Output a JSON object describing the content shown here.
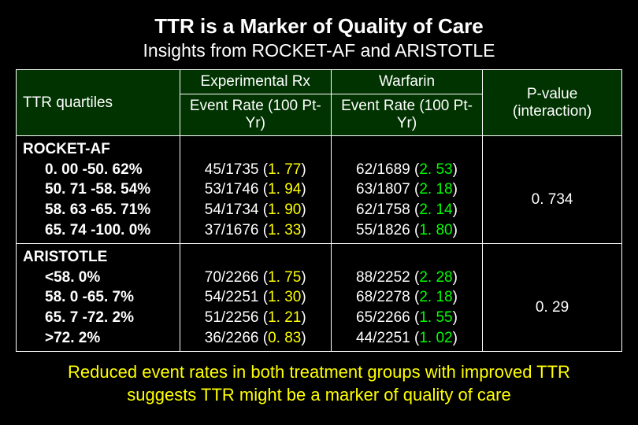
{
  "title": "TTR is a Marker of Quality of Care",
  "subtitle": "Insights from ROCKET-AF and ARISTOTLE",
  "headers": {
    "rowhead": "TTR quartiles",
    "col1_top": "Experimental Rx",
    "col2_top": "Warfarin",
    "sub": "Event Rate (100 Pt-Yr)",
    "pval": "P-value (interaction)"
  },
  "groups": [
    {
      "study": "ROCKET-AF",
      "pvalue": "0. 734",
      "quartiles": [
        "0. 00 -50. 62%",
        "50. 71 -58. 54%",
        "58. 63 -65. 71%",
        "65. 74 -100. 0%"
      ],
      "exp": [
        {
          "n": "45/1735",
          "r": "1. 77"
        },
        {
          "n": "53/1746",
          "r": "1. 94"
        },
        {
          "n": "54/1734",
          "r": "1. 90"
        },
        {
          "n": "37/1676",
          "r": "1. 33"
        }
      ],
      "warf": [
        {
          "n": "62/1689",
          "r": "2. 53"
        },
        {
          "n": "63/1807",
          "r": "2. 18"
        },
        {
          "n": "62/1758",
          "r": "2. 14"
        },
        {
          "n": "55/1826",
          "r": "1. 80"
        }
      ]
    },
    {
      "study": "ARISTOTLE",
      "pvalue": "0. 29",
      "quartiles": [
        "<58. 0%",
        "58. 0 -65. 7%",
        "65. 7 -72. 2%",
        ">72. 2%"
      ],
      "exp": [
        {
          "n": "70/2266",
          "r": "1. 75"
        },
        {
          "n": "54/2251",
          "r": "1. 30"
        },
        {
          "n": "51/2256",
          "r": "1. 21"
        },
        {
          "n": "36/2266",
          "r": "0. 83"
        }
      ],
      "warf": [
        {
          "n": "88/2252",
          "r": "2. 28"
        },
        {
          "n": "68/2278",
          "r": "2. 18"
        },
        {
          "n": "65/2266",
          "r": "1. 55"
        },
        {
          "n": "44/2251",
          "r": "1. 02"
        }
      ]
    }
  ],
  "footer_l1": "Reduced event rates in both treatment groups with improved TTR",
  "footer_l2": "suggests TTR might be a marker of quality of care",
  "styling": {
    "background_color": "#000000",
    "header_bg": "#003300",
    "text_color": "#ffffff",
    "highlight_color": "#ffff00",
    "rate_color": "#00ff00",
    "border_color": "#ffffff",
    "title_fontsize": 26,
    "subtitle_fontsize": 23,
    "cell_fontsize": 19,
    "footer_fontsize": 22,
    "font_family": "Arial"
  }
}
